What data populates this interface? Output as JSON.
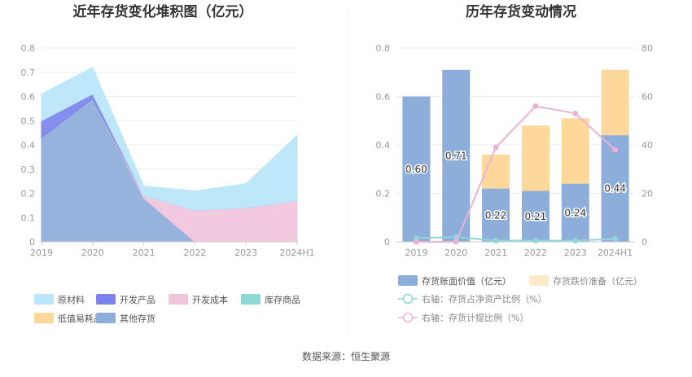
{
  "source_label": "数据来源：恒生聚源",
  "chart_data": [
    {
      "type": "area",
      "stacked": true,
      "title": "近年存货变化堆积图（亿元）",
      "categories": [
        "2019",
        "2020",
        "2021",
        "2022",
        "2023",
        "2024H1"
      ],
      "ylim": [
        0,
        0.8
      ],
      "yticks": [
        "0",
        "0.1",
        "0.2",
        "0.3",
        "0.4",
        "0.5",
        "0.6",
        "0.7",
        "0.8"
      ],
      "grid": true,
      "legend_position": "bottom",
      "series": [
        {
          "name": "其他存货",
          "color": "#8dadda",
          "values": [
            0.43,
            0.59,
            0.18,
            0,
            0,
            0
          ]
        },
        {
          "name": "低值易耗品",
          "color": "#fdd89a",
          "values": [
            0,
            0,
            0,
            0,
            0,
            0
          ]
        },
        {
          "name": "库存商品",
          "color": "#8fd6d6",
          "values": [
            0,
            0,
            0,
            0,
            0,
            0
          ]
        },
        {
          "name": "开发成本",
          "color": "#f2c4dc",
          "values": [
            0,
            0,
            0.01,
            0.13,
            0.14,
            0.17
          ]
        },
        {
          "name": "开发产品",
          "color": "#7b83ee",
          "values": [
            0.07,
            0.02,
            0,
            0,
            0,
            0
          ]
        },
        {
          "name": "原材料",
          "color": "#b9e6fa",
          "values": [
            0.11,
            0.11,
            0.04,
            0.08,
            0.1,
            0.27
          ]
        }
      ],
      "legend": [
        {
          "name": "原材料",
          "color": "#b9e6fa"
        },
        {
          "name": "开发产品",
          "color": "#7b83ee"
        },
        {
          "name": "开发成本",
          "color": "#f2c4dc"
        },
        {
          "name": "库存商品",
          "color": "#8fd6d6"
        },
        {
          "name": "低值易耗品",
          "color": "#fdd89a"
        },
        {
          "name": "其他存货",
          "color": "#8dadda"
        }
      ]
    },
    {
      "type": "bar",
      "stacked": true,
      "title": "历年存货变动情况",
      "categories": [
        "2019",
        "2020",
        "2021",
        "2022",
        "2023",
        "2024H1"
      ],
      "ylim": [
        0,
        0.8
      ],
      "yticks": [
        "0",
        "0.2",
        "0.4",
        "0.6",
        "0.8"
      ],
      "ylim_right": [
        0,
        80
      ],
      "yticks_right": [
        "0",
        "20",
        "40",
        "60",
        "80"
      ],
      "grid": true,
      "legend_position": "bottom",
      "series": [
        {
          "name": "存货账面价值（亿元）",
          "color": "#8dadda",
          "values": [
            0.6,
            0.71,
            0.22,
            0.21,
            0.24,
            0.44
          ],
          "labels": [
            "0.60",
            "0.71",
            "0.22",
            "0.21",
            "0.24",
            "0.44"
          ]
        },
        {
          "name": "存货跌价准备（亿元）",
          "color": "#fdd89a",
          "values": [
            0,
            0,
            0.14,
            0.27,
            0.27,
            0.27
          ]
        }
      ],
      "lines": [
        {
          "name": "右轴：存货占净资产比例（%）",
          "color": "#8fd6d6",
          "values": [
            1.5,
            2.0,
            0.5,
            0.5,
            0.5,
            1.2
          ]
        },
        {
          "name": "右轴：存货计提比例（%）",
          "color": "#eab3d6",
          "values": [
            0,
            0,
            39,
            56,
            53,
            38
          ]
        }
      ]
    }
  ]
}
